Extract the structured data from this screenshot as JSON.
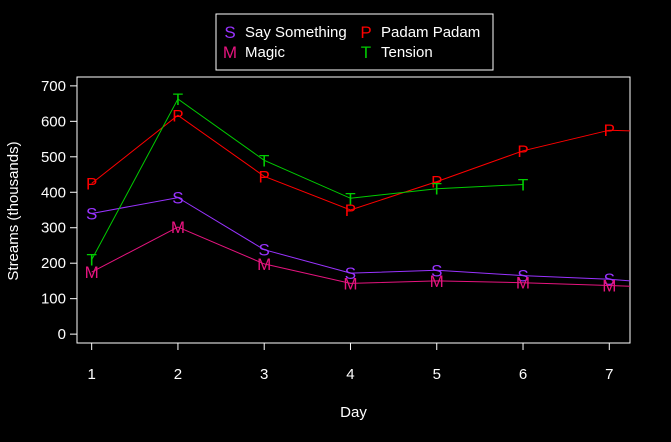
{
  "chart_data": {
    "type": "line",
    "title": "",
    "xlabel": "Day",
    "ylabel": "Streams (thousands)",
    "x": [
      1,
      2,
      3,
      4,
      5,
      6,
      7
    ],
    "xlim": [
      0.83,
      7.24
    ],
    "ylim": [
      -25,
      725
    ],
    "xticks": [
      1,
      2,
      3,
      4,
      5,
      6,
      7
    ],
    "yticks": [
      0,
      100,
      200,
      300,
      400,
      500,
      600,
      700
    ],
    "grid": false,
    "legend": "top-center",
    "series": [
      {
        "name": "Say Something",
        "symbol": "S",
        "color": "#9933FF",
        "x": [
          1,
          2,
          3,
          4,
          5,
          6,
          7,
          7.24
        ],
        "values": [
          340,
          385,
          238,
          172,
          180,
          165,
          155,
          150
        ]
      },
      {
        "name": "Magic",
        "symbol": "M",
        "color": "#E6147F",
        "x": [
          1,
          2,
          3,
          4,
          5,
          6,
          7,
          7.24
        ],
        "values": [
          175,
          302,
          198,
          143,
          150,
          145,
          137,
          135
        ]
      },
      {
        "name": "Padam Padam",
        "symbol": "P",
        "color": "#FF0000",
        "x": [
          1,
          2,
          3,
          4,
          5,
          6,
          7,
          7.24
        ],
        "values": [
          425,
          617,
          445,
          350,
          430,
          517,
          575,
          573
        ]
      },
      {
        "name": "Tension",
        "symbol": "T",
        "color": "#00CC00",
        "x": [
          1,
          2,
          3,
          4,
          5,
          6
        ],
        "values": [
          210,
          663,
          490,
          383,
          410,
          422
        ]
      }
    ]
  }
}
